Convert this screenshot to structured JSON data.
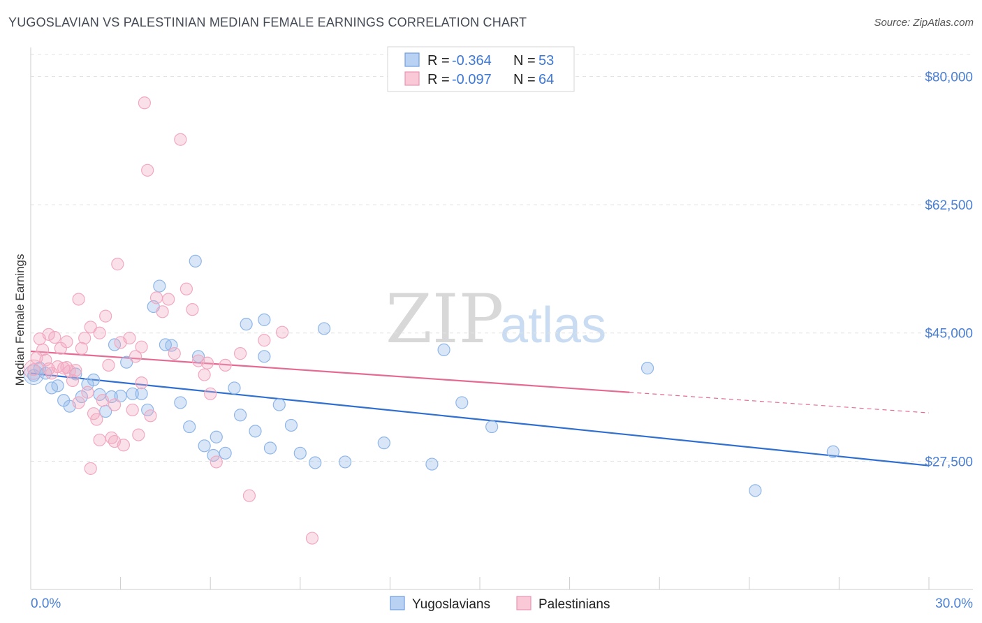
{
  "chart_data": {
    "type": "scatter",
    "title": "YUGOSLAVIAN VS PALESTINIAN MEDIAN FEMALE EARNINGS CORRELATION CHART",
    "source": "Source: ZipAtlas.com",
    "xlabel": "",
    "ylabel": "Median Female Earnings",
    "xlim": [
      0,
      30
    ],
    "ylim": [
      10000,
      83000
    ],
    "x_tick_labels": [
      "0.0%",
      "30.0%"
    ],
    "y_ticks": [
      27500,
      45000,
      62500,
      80000
    ],
    "y_tick_labels": [
      "$27,500",
      "$45,000",
      "$62,500",
      "$80,000"
    ],
    "grid": true,
    "watermark": {
      "zip": "ZIP",
      "atlas": "atlas"
    },
    "legend": {
      "rows": [
        {
          "r_label": "R =",
          "r_value": "-0.364",
          "n_label": "N =",
          "n_value": "53"
        },
        {
          "r_label": "R =",
          "r_value": "-0.097",
          "n_label": "N =",
          "n_value": "64"
        }
      ]
    },
    "series": [
      {
        "name": "Yugoslavians",
        "color": "#8fb6e8",
        "line_color": "#2f6fd0",
        "trend": {
          "x0": 0,
          "y0": 39500,
          "x1": 30,
          "y1": 26900,
          "solid_until": 30
        },
        "points": [
          [
            0.1,
            39200
          ],
          [
            0.3,
            40200
          ],
          [
            0.5,
            39500
          ],
          [
            0.7,
            37500
          ],
          [
            0.9,
            37800
          ],
          [
            1.1,
            35800
          ],
          [
            1.3,
            35000
          ],
          [
            1.5,
            39400
          ],
          [
            1.7,
            36300
          ],
          [
            1.9,
            38000
          ],
          [
            2.1,
            38600
          ],
          [
            2.3,
            36600
          ],
          [
            2.5,
            34300
          ],
          [
            2.7,
            36300
          ],
          [
            2.8,
            43400
          ],
          [
            3.0,
            36400
          ],
          [
            3.2,
            41000
          ],
          [
            3.4,
            36700
          ],
          [
            3.7,
            36700
          ],
          [
            3.9,
            34500
          ],
          [
            4.1,
            48600
          ],
          [
            4.3,
            51400
          ],
          [
            4.5,
            43400
          ],
          [
            4.7,
            43300
          ],
          [
            5.0,
            35500
          ],
          [
            5.3,
            32200
          ],
          [
            5.5,
            54800
          ],
          [
            5.6,
            41800
          ],
          [
            5.8,
            29600
          ],
          [
            6.1,
            28300
          ],
          [
            6.2,
            30800
          ],
          [
            6.5,
            28600
          ],
          [
            6.8,
            37500
          ],
          [
            7.0,
            33800
          ],
          [
            7.2,
            46200
          ],
          [
            7.5,
            31600
          ],
          [
            7.8,
            46800
          ],
          [
            7.8,
            41800
          ],
          [
            8.0,
            29300
          ],
          [
            8.3,
            35200
          ],
          [
            8.7,
            32400
          ],
          [
            9.0,
            28600
          ],
          [
            9.5,
            27300
          ],
          [
            9.8,
            45600
          ],
          [
            10.5,
            27400
          ],
          [
            11.8,
            30000
          ],
          [
            13.4,
            27100
          ],
          [
            13.8,
            42700
          ],
          [
            14.4,
            35500
          ],
          [
            15.4,
            32200
          ],
          [
            20.6,
            40200
          ],
          [
            24.2,
            23500
          ],
          [
            26.8,
            28800
          ]
        ]
      },
      {
        "name": "Palestinians",
        "color": "#f2a8c0",
        "line_color": "#e46a92",
        "trend": {
          "x0": 0,
          "y0": 42500,
          "x1": 30,
          "y1": 34100,
          "solid_until": 20
        },
        "points": [
          [
            0.1,
            40000
          ],
          [
            0.2,
            41600
          ],
          [
            0.3,
            44200
          ],
          [
            0.4,
            42700
          ],
          [
            0.5,
            41300
          ],
          [
            0.6,
            40100
          ],
          [
            0.7,
            39500
          ],
          [
            0.8,
            44400
          ],
          [
            0.9,
            40400
          ],
          [
            1.0,
            42900
          ],
          [
            1.1,
            40200
          ],
          [
            1.2,
            40300
          ],
          [
            1.3,
            39800
          ],
          [
            1.4,
            38500
          ],
          [
            1.5,
            39900
          ],
          [
            1.6,
            35500
          ],
          [
            1.7,
            42900
          ],
          [
            1.8,
            44300
          ],
          [
            1.9,
            36900
          ],
          [
            2.0,
            45800
          ],
          [
            2.1,
            34000
          ],
          [
            2.2,
            33200
          ],
          [
            2.3,
            30400
          ],
          [
            2.4,
            35800
          ],
          [
            2.5,
            47300
          ],
          [
            2.6,
            40600
          ],
          [
            2.7,
            30700
          ],
          [
            2.8,
            35200
          ],
          [
            2.9,
            54400
          ],
          [
            3.0,
            43700
          ],
          [
            3.1,
            29700
          ],
          [
            3.3,
            44300
          ],
          [
            3.4,
            34500
          ],
          [
            3.5,
            41800
          ],
          [
            3.6,
            31100
          ],
          [
            3.7,
            38200
          ],
          [
            3.8,
            76400
          ],
          [
            3.9,
            67200
          ],
          [
            4.0,
            33700
          ],
          [
            4.2,
            49800
          ],
          [
            4.4,
            47900
          ],
          [
            4.6,
            49600
          ],
          [
            4.8,
            42200
          ],
          [
            5.0,
            71400
          ],
          [
            5.2,
            51000
          ],
          [
            5.4,
            48200
          ],
          [
            5.6,
            41200
          ],
          [
            5.8,
            39300
          ],
          [
            6.0,
            36700
          ],
          [
            6.2,
            27400
          ],
          [
            6.5,
            40600
          ],
          [
            7.0,
            42200
          ],
          [
            7.3,
            22800
          ],
          [
            7.8,
            44000
          ],
          [
            8.4,
            45100
          ],
          [
            9.4,
            17000
          ],
          [
            2.0,
            26500
          ],
          [
            1.2,
            43800
          ],
          [
            2.3,
            45000
          ],
          [
            3.7,
            43100
          ],
          [
            5.9,
            40900
          ],
          [
            1.6,
            49600
          ],
          [
            2.8,
            30200
          ],
          [
            0.6,
            44800
          ]
        ]
      }
    ]
  }
}
